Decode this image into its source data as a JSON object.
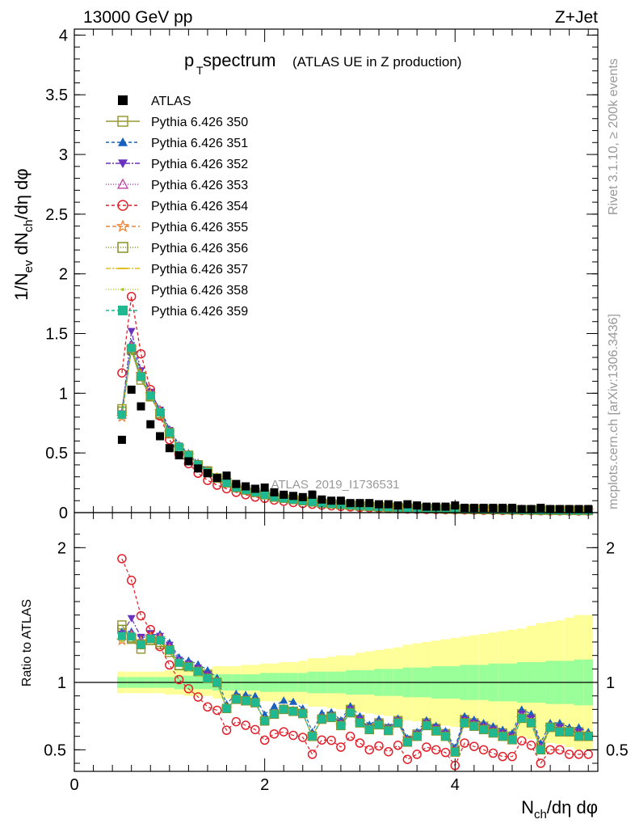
{
  "header": {
    "left": "13000 GeV pp",
    "right": "Z+Jet"
  },
  "side_labels": {
    "rivet": "Rivet 3.1.10, ≥ 200k events",
    "mcplots": "mcplots.cern.ch [arXiv:1306.3436]"
  },
  "watermark": "ATLAS_2019_I1736531",
  "chart_data": [
    {
      "type": "scatter",
      "title_main": "p",
      "title_sub": "T",
      "title_main2": " spectrum",
      "title_note": "(ATLAS UE in Z production)",
      "ylabel": "1/N_ev dN_ch/dη dφ",
      "ylim": [
        0,
        4.05
      ],
      "xlim": [
        0,
        5.5
      ],
      "yticks": [
        {
          "v": 0,
          "t": "0"
        },
        {
          "v": 0.5,
          "t": "0.5"
        },
        {
          "v": 1,
          "t": "1"
        },
        {
          "v": 1.5,
          "t": "1.5"
        },
        {
          "v": 2,
          "t": "2"
        },
        {
          "v": 2.5,
          "t": "2.5"
        },
        {
          "v": 3,
          "t": "3"
        },
        {
          "v": 3.5,
          "t": "3.5"
        },
        {
          "v": 4,
          "t": "4"
        }
      ],
      "legend": [
        {
          "name": "ATLAS",
          "color": "#000000",
          "marker": "square-filled",
          "dash": ""
        },
        {
          "name": "Pythia 6.426 350",
          "color": "#999933",
          "marker": "square-open",
          "dash": ""
        },
        {
          "name": "Pythia 6.426 351",
          "color": "#1860c0",
          "marker": "triangle-filled",
          "dash": "4,3"
        },
        {
          "name": "Pythia 6.426 352",
          "color": "#6a30c0",
          "marker": "triangle-down-filled",
          "dash": "6,2,2,2"
        },
        {
          "name": "Pythia 6.426 353",
          "color": "#c040a0",
          "marker": "triangle-open",
          "dash": "1,2"
        },
        {
          "name": "Pythia 6.426 354",
          "color": "#e0202a",
          "marker": "circle-open",
          "dash": "4,3"
        },
        {
          "name": "Pythia 6.426 355",
          "color": "#f08030",
          "marker": "star-open",
          "dash": "5,3"
        },
        {
          "name": "Pythia 6.426 356",
          "color": "#889020",
          "marker": "square-open",
          "dash": "1,2"
        },
        {
          "name": "Pythia 6.426 357",
          "color": "#e0c020",
          "marker": "dash",
          "dash": "6,2,2,2"
        },
        {
          "name": "Pythia 6.426 358",
          "color": "#b0d030",
          "marker": "dot",
          "dash": "1,2"
        },
        {
          "name": "Pythia 6.426 359",
          "color": "#20b890",
          "marker": "square-filled",
          "dash": "4,3"
        }
      ],
      "x": [
        0.5,
        0.6,
        0.7,
        0.8,
        0.9,
        1.0,
        1.1,
        1.2,
        1.3,
        1.4,
        1.5,
        1.6,
        1.7,
        1.8,
        1.9,
        2.0,
        2.1,
        2.2,
        2.3,
        2.4,
        2.5,
        2.6,
        2.7,
        2.8,
        2.9,
        3.0,
        3.1,
        3.2,
        3.3,
        3.4,
        3.5,
        3.6,
        3.7,
        3.8,
        3.9,
        4.0,
        4.1,
        4.2,
        4.3,
        4.4,
        4.5,
        4.6,
        4.7,
        4.8,
        4.9,
        5.0,
        5.1,
        5.2,
        5.3,
        5.4
      ],
      "atlas": [
        0.61,
        1.03,
        0.89,
        0.74,
        0.64,
        0.54,
        0.48,
        0.43,
        0.37,
        0.33,
        0.29,
        0.31,
        0.24,
        0.22,
        0.2,
        0.21,
        0.17,
        0.15,
        0.14,
        0.13,
        0.15,
        0.11,
        0.1,
        0.1,
        0.08,
        0.08,
        0.08,
        0.07,
        0.07,
        0.06,
        0.07,
        0.06,
        0.05,
        0.05,
        0.05,
        0.06,
        0.04,
        0.04,
        0.04,
        0.04,
        0.04,
        0.04,
        0.03,
        0.03,
        0.04,
        0.03,
        0.03,
        0.03,
        0.03,
        0.03
      ],
      "series": [
        {
          "name": "Pythia 6.426 350",
          "values": [
            0.87,
            1.36,
            1.11,
            0.98,
            0.82,
            0.66,
            0.54,
            0.48,
            0.4,
            0.35,
            0.29,
            0.25,
            0.21,
            0.19,
            0.17,
            0.15,
            0.13,
            0.12,
            0.11,
            0.1,
            0.09,
            0.08,
            0.075,
            0.07,
            0.064,
            0.058,
            0.053,
            0.049,
            0.046,
            0.043,
            0.04,
            0.037,
            0.035,
            0.033,
            0.031,
            0.03,
            0.029,
            0.028,
            0.027,
            0.026,
            0.025,
            0.024,
            0.023,
            0.022,
            0.021,
            0.02,
            0.02,
            0.019,
            0.019,
            0.018
          ]
        },
        {
          "name": "Pythia 6.426 351",
          "values": [
            0.84,
            1.42,
            1.18,
            1.0,
            0.87,
            0.7,
            0.57,
            0.5,
            0.42,
            0.36,
            0.3,
            0.26,
            0.22,
            0.2,
            0.18,
            0.16,
            0.14,
            0.13,
            0.12,
            0.105,
            0.095,
            0.085,
            0.078,
            0.072,
            0.066,
            0.06,
            0.055,
            0.051,
            0.047,
            0.044,
            0.041,
            0.038,
            0.036,
            0.034,
            0.032,
            0.031,
            0.03,
            0.029,
            0.028,
            0.027,
            0.026,
            0.025,
            0.024,
            0.023,
            0.022,
            0.021,
            0.021,
            0.02,
            0.02,
            0.019
          ]
        },
        {
          "name": "Pythia 6.426 352",
          "values": [
            0.83,
            1.52,
            1.19,
            1.01,
            0.86,
            0.69,
            0.56,
            0.49,
            0.41,
            0.35,
            0.29,
            0.25,
            0.21,
            0.19,
            0.17,
            0.15,
            0.13,
            0.12,
            0.11,
            0.1,
            0.09,
            0.08,
            0.075,
            0.07,
            0.064,
            0.058,
            0.053,
            0.049,
            0.046,
            0.043,
            0.04,
            0.037,
            0.035,
            0.033,
            0.031,
            0.03,
            0.029,
            0.028,
            0.027,
            0.026,
            0.025,
            0.024,
            0.023,
            0.022,
            0.021,
            0.02,
            0.02,
            0.019,
            0.019,
            0.018
          ]
        },
        {
          "name": "Pythia 6.426 353",
          "values": [
            0.82,
            1.4,
            1.14,
            0.98,
            0.84,
            0.68,
            0.55,
            0.48,
            0.4,
            0.34,
            0.29,
            0.25,
            0.21,
            0.19,
            0.17,
            0.15,
            0.13,
            0.12,
            0.11,
            0.1,
            0.09,
            0.08,
            0.074,
            0.068,
            0.062,
            0.056,
            0.052,
            0.048,
            0.045,
            0.042,
            0.039,
            0.036,
            0.034,
            0.032,
            0.03,
            0.029,
            0.028,
            0.027,
            0.026,
            0.025,
            0.024,
            0.023,
            0.022,
            0.021,
            0.02,
            0.02,
            0.019,
            0.019,
            0.018,
            0.018
          ]
        },
        {
          "name": "Pythia 6.426 354",
          "values": [
            1.17,
            1.81,
            1.33,
            1.03,
            0.81,
            0.61,
            0.49,
            0.41,
            0.33,
            0.27,
            0.23,
            0.2,
            0.17,
            0.15,
            0.13,
            0.12,
            0.105,
            0.095,
            0.085,
            0.077,
            0.07,
            0.063,
            0.057,
            0.052,
            0.048,
            0.044,
            0.04,
            0.037,
            0.034,
            0.032,
            0.03,
            0.028,
            0.026,
            0.025,
            0.024,
            0.023,
            0.022,
            0.021,
            0.02,
            0.019,
            0.018,
            0.018,
            0.017,
            0.016,
            0.016,
            0.015,
            0.015,
            0.014,
            0.014,
            0.014
          ]
        },
        {
          "name": "Pythia 6.426 355",
          "values": [
            0.8,
            1.38,
            1.16,
            0.99,
            0.85,
            0.67,
            0.55,
            0.48,
            0.4,
            0.34,
            0.29,
            0.25,
            0.21,
            0.19,
            0.17,
            0.15,
            0.13,
            0.12,
            0.11,
            0.1,
            0.09,
            0.08,
            0.074,
            0.068,
            0.062,
            0.056,
            0.052,
            0.048,
            0.045,
            0.042,
            0.039,
            0.036,
            0.034,
            0.032,
            0.03,
            0.029,
            0.028,
            0.027,
            0.026,
            0.025,
            0.024,
            0.023,
            0.022,
            0.021,
            0.02,
            0.02,
            0.019,
            0.019,
            0.018,
            0.018
          ]
        },
        {
          "name": "Pythia 6.426 356",
          "values": [
            0.85,
            1.37,
            1.14,
            0.97,
            0.83,
            0.67,
            0.54,
            0.48,
            0.4,
            0.34,
            0.29,
            0.25,
            0.21,
            0.19,
            0.17,
            0.15,
            0.13,
            0.12,
            0.11,
            0.1,
            0.09,
            0.08,
            0.074,
            0.068,
            0.062,
            0.056,
            0.052,
            0.048,
            0.045,
            0.042,
            0.039,
            0.036,
            0.034,
            0.032,
            0.03,
            0.029,
            0.028,
            0.027,
            0.026,
            0.025,
            0.024,
            0.023,
            0.022,
            0.021,
            0.02,
            0.02,
            0.019,
            0.019,
            0.018,
            0.018
          ]
        },
        {
          "name": "Pythia 6.426 357",
          "values": [
            0.81,
            1.39,
            1.15,
            0.98,
            0.84,
            0.67,
            0.55,
            0.48,
            0.4,
            0.34,
            0.29,
            0.25,
            0.21,
            0.19,
            0.17,
            0.15,
            0.13,
            0.12,
            0.11,
            0.1,
            0.09,
            0.08,
            0.074,
            0.068,
            0.062,
            0.056,
            0.052,
            0.048,
            0.045,
            0.042,
            0.039,
            0.036,
            0.034,
            0.032,
            0.03,
            0.029,
            0.028,
            0.027,
            0.026,
            0.025,
            0.024,
            0.023,
            0.022,
            0.021,
            0.02,
            0.02,
            0.019,
            0.019,
            0.018,
            0.018
          ]
        },
        {
          "name": "Pythia 6.426 358",
          "values": [
            0.8,
            1.37,
            1.13,
            0.97,
            0.83,
            0.66,
            0.54,
            0.47,
            0.39,
            0.34,
            0.29,
            0.25,
            0.21,
            0.19,
            0.17,
            0.15,
            0.13,
            0.12,
            0.11,
            0.1,
            0.09,
            0.08,
            0.074,
            0.068,
            0.062,
            0.056,
            0.052,
            0.048,
            0.045,
            0.042,
            0.039,
            0.036,
            0.034,
            0.032,
            0.03,
            0.029,
            0.028,
            0.027,
            0.026,
            0.025,
            0.024,
            0.023,
            0.022,
            0.021,
            0.02,
            0.02,
            0.019,
            0.019,
            0.018,
            0.018
          ]
        },
        {
          "name": "Pythia 6.426 359",
          "values": [
            0.82,
            1.38,
            1.14,
            0.98,
            0.84,
            0.67,
            0.55,
            0.48,
            0.4,
            0.34,
            0.29,
            0.25,
            0.21,
            0.19,
            0.17,
            0.15,
            0.13,
            0.12,
            0.11,
            0.1,
            0.09,
            0.08,
            0.074,
            0.068,
            0.062,
            0.056,
            0.052,
            0.048,
            0.045,
            0.042,
            0.039,
            0.036,
            0.034,
            0.032,
            0.03,
            0.029,
            0.028,
            0.027,
            0.026,
            0.025,
            0.024,
            0.023,
            0.022,
            0.021,
            0.02,
            0.02,
            0.019,
            0.019,
            0.018,
            0.018
          ]
        }
      ]
    },
    {
      "type": "scatter",
      "ylabel": "Ratio to ATLAS",
      "xlabel": "N_ch/dη dφ",
      "ylim": [
        0.34,
        2.26
      ],
      "xlim": [
        0,
        5.5
      ],
      "yticks_left": [
        {
          "v": 0.5,
          "t": "0.5"
        },
        {
          "v": 1,
          "t": "1"
        },
        {
          "v": 2,
          "t": "2"
        }
      ],
      "yticks_right": [
        {
          "v": 0.5,
          "t": "0.5"
        },
        {
          "v": 1,
          "t": "1"
        },
        {
          "v": 2,
          "t": "2"
        }
      ],
      "xticks": [
        {
          "v": 0,
          "t": "0"
        },
        {
          "v": 2,
          "t": "2"
        },
        {
          "v": 4,
          "t": "4"
        }
      ],
      "reference_line": 1,
      "band_green_half": [
        0.04,
        0.04,
        0.04,
        0.04,
        0.04,
        0.04,
        0.05,
        0.05,
        0.05,
        0.05,
        0.06,
        0.06,
        0.06,
        0.06,
        0.06,
        0.07,
        0.07,
        0.07,
        0.07,
        0.07,
        0.08,
        0.08,
        0.08,
        0.08,
        0.09,
        0.09,
        0.09,
        0.1,
        0.1,
        0.1,
        0.11,
        0.11,
        0.11,
        0.12,
        0.12,
        0.12,
        0.13,
        0.13,
        0.13,
        0.14,
        0.14,
        0.14,
        0.15,
        0.15,
        0.15,
        0.16,
        0.16,
        0.16,
        0.17,
        0.17
      ],
      "band_yellow_half": [
        0.08,
        0.08,
        0.08,
        0.08,
        0.08,
        0.09,
        0.09,
        0.1,
        0.1,
        0.1,
        0.12,
        0.12,
        0.12,
        0.13,
        0.13,
        0.14,
        0.14,
        0.15,
        0.15,
        0.16,
        0.18,
        0.18,
        0.19,
        0.2,
        0.2,
        0.22,
        0.23,
        0.24,
        0.25,
        0.26,
        0.28,
        0.29,
        0.3,
        0.31,
        0.32,
        0.33,
        0.34,
        0.35,
        0.36,
        0.37,
        0.38,
        0.39,
        0.4,
        0.42,
        0.44,
        0.45,
        0.46,
        0.48,
        0.5,
        0.5
      ]
    }
  ]
}
